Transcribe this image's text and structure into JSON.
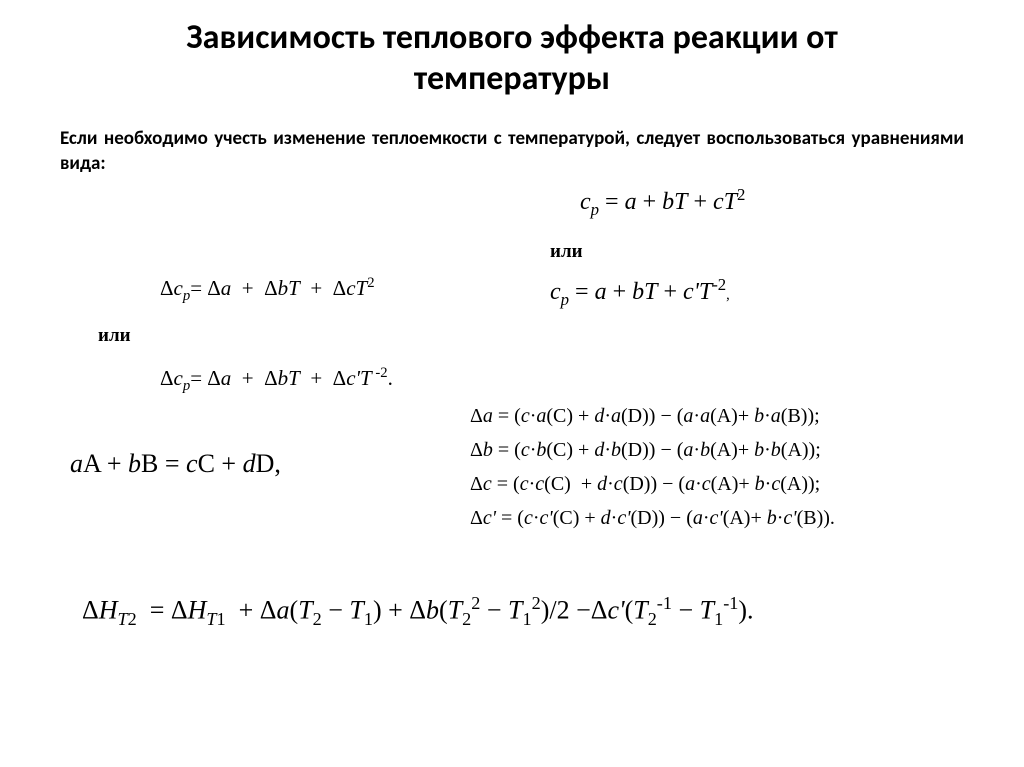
{
  "title_line1": "Зависимость теплового эффекта реакции от",
  "title_line2": "температуры",
  "intro": "Если необходимо учесть изменение теплоемкости с температурой, следует воспользоваться уравнениями вида:",
  "or_label": "или",
  "eq_cp1_html": "<span class='ital'>c</span><span class='sub'>p</span> = <span class='ital'>a</span> + <span class='ital'>bT</span> + <span class='ital'>cT</span><span class='sup'>2</span>",
  "eq_cp2_html": "<span class='ital'>c</span><span class='sub'>p</span> = <span class='ital'>a</span> + <span class='ital'>bT</span> + <span class='ital'>c'T</span><span class='sup'>-2</span><span style='font-size:0.6em'>,</span>",
  "eq_dcp1_html": "&Delta;<span class='ital'>c</span><span class='sub'>p</span>= &Delta;<span class='ital'>a</span> &nbsp;+&nbsp; &Delta;<span class='ital'>bT</span> &nbsp;+&nbsp; &Delta;<span class='ital'>cT</span><span class='sup'>2</span>",
  "eq_dcp2_html": "&Delta;<span class='ital'>c</span><span class='sub'>p</span>= &Delta;<span class='ital'>a</span> &nbsp;+&nbsp; &Delta;<span class='ital'>bT</span> &nbsp;+&nbsp; &Delta;<span class='ital'>c'T</span><span class='sup'>&nbsp;-2</span>.",
  "eq_reaction_html": "<span class='ital'>a</span>A + <span class='ital'>b</span>B = <span class='ital'>c</span>C + <span class='ital'>d</span>D,",
  "delta_a_html": "&Delta;<span class='ital'>a</span> = (<span class='ital'>c</span>&middot;<span class='ital'>a</span>(C) + <span class='ital'>d</span>&middot;<span class='ital'>a</span>(D)) &minus; (<span class='ital'>a</span>&middot;<span class='ital'>a</span>(A)+ <span class='ital'>b</span>&middot;<span class='ital'>a</span>(B));",
  "delta_b_html": "&Delta;<span class='ital'>b</span> = (<span class='ital'>c</span>&middot;<span class='ital'>b</span>(C) + <span class='ital'>d</span>&middot;<span class='ital'>b</span>(D)) &minus; (<span class='ital'>a</span>&middot;<span class='ital'>b</span>(A)+ <span class='ital'>b</span>&middot;<span class='ital'>b</span>(A));",
  "delta_c_html": "&Delta;<span class='ital'>c</span> = (<span class='ital'>c</span>&middot;<span class='ital'>c</span>(C) &nbsp;+ <span class='ital'>d</span>&middot;<span class='ital'>c</span>(D)) &minus; (<span class='ital'>a</span>&middot;<span class='ital'>c</span>(A)+ <span class='ital'>b</span>&middot;<span class='ital'>c</span>(A));",
  "delta_cp_html": "&Delta;<span class='ital'>c'</span> = (<span class='ital'>c</span>&middot;<span class='ital'>c'</span>(C) + <span class='ital'>d</span>&middot;<span class='ital'>c'</span>(D)) &minus; (<span class='ital'>a</span>&middot;<span class='ital'>c'</span>(A)+ <span class='ital'>b</span>&middot;<span class='ital'>c'</span>(B)).",
  "eq_final_html": "&Delta;<span class='ital'>H</span><span class='sub'>T</span><span class='subn'>2</span> &nbsp;= &Delta;<span class='ital'>H</span><span class='sub'>T</span><span class='subn'>1</span> &nbsp;+ &Delta;<span class='ital'>a</span>(<span class='ital'>T</span><span class='subn'>2</span> &minus; <span class='ital'>T</span><span class='subn'>1</span>) + &Delta;<span class='ital'>b</span>(<span class='ital'>T</span><span class='subn'>2</span><span class='sup'>2</span> &minus; <span class='ital'>T</span><span class='subn'>1</span><span class='sup'>2</span>)/2 &minus;&Delta;<span class='ital'>c'</span>(<span class='ital'>T</span><span class='subn'>2</span><span class='sup'>-1</span> &minus; <span class='ital'>T</span><span class='subn'>1</span><span class='sup'>-1</span>).",
  "colors": {
    "text": "#000000",
    "background": "#ffffff"
  },
  "fonts": {
    "heading": "Calibri",
    "body": "Calibri",
    "math": "Times New Roman"
  }
}
